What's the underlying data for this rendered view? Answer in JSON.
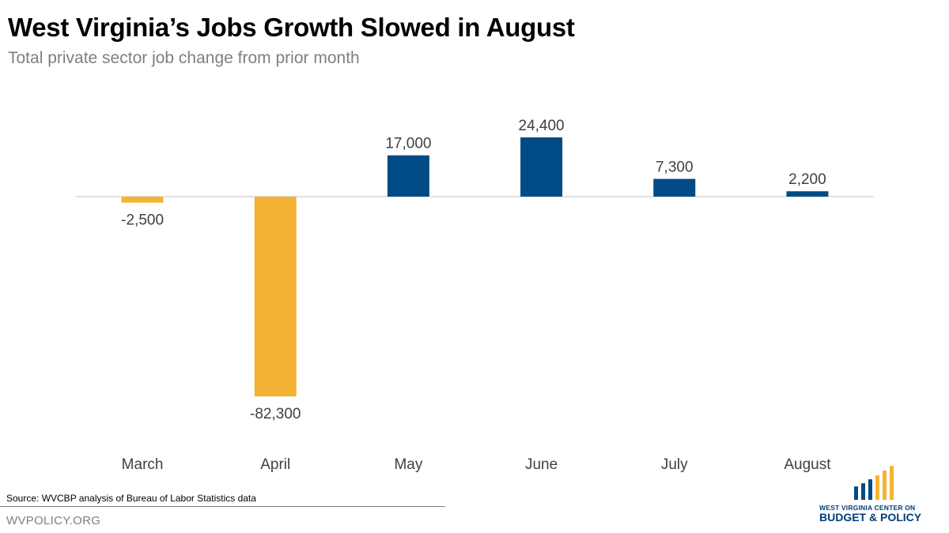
{
  "title": "West Virginia’s Jobs Growth Slowed in August",
  "subtitle": "Total private sector job change from prior month",
  "source": "Source:  WVCBP analysis of Bureau of Labor Statistics data",
  "site": "WVPOLICY.ORG",
  "logo": {
    "line1": "WEST VIRGINIA CENTER ON",
    "line2": "BUDGET & POLICY"
  },
  "colors": {
    "positive": "#004b85",
    "negative": "#f4b334",
    "axis": "#d9d9d9",
    "label": "#404040"
  },
  "chart_data": {
    "type": "bar",
    "categories": [
      "March",
      "April",
      "May",
      "June",
      "July",
      "August"
    ],
    "values": [
      -2500,
      -82300,
      17000,
      24400,
      7300,
      2200
    ],
    "data_labels": [
      "-2,500",
      "-82,300",
      "17,000",
      "24,400",
      "7,300",
      "2,200"
    ],
    "title": "West Virginia’s Jobs Growth Slowed in August",
    "subtitle": "Total private sector job change from prior month",
    "xlabel": "",
    "ylabel": "",
    "ylim": [
      -82300,
      24400
    ],
    "grid": false,
    "legend": "none"
  }
}
